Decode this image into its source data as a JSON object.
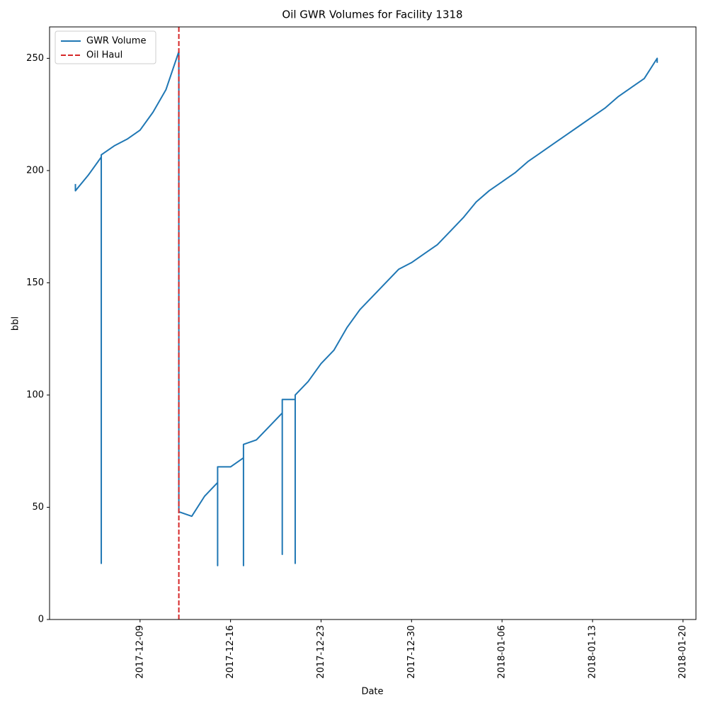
{
  "chart_data": {
    "type": "line",
    "title": "Oil GWR Volumes for Facility 1318",
    "x_label": "Date",
    "y_label": "bbl",
    "x": [
      "2017-12-04",
      "2017-12-04",
      "2017-12-05",
      "2017-12-06",
      "2017-12-06",
      "2017-12-06",
      "2017-12-07",
      "2017-12-08",
      "2017-12-09",
      "2017-12-10",
      "2017-12-11",
      "2017-12-12",
      "2017-12-12",
      "2017-12-13",
      "2017-12-14",
      "2017-12-15",
      "2017-12-15",
      "2017-12-15",
      "2017-12-16",
      "2017-12-17",
      "2017-12-17",
      "2017-12-17",
      "2017-12-18",
      "2017-12-19",
      "2017-12-20",
      "2017-12-20",
      "2017-12-20",
      "2017-12-21",
      "2017-12-21",
      "2017-12-21",
      "2017-12-22",
      "2017-12-23",
      "2017-12-24",
      "2017-12-25",
      "2017-12-26",
      "2017-12-27",
      "2017-12-28",
      "2017-12-29",
      "2017-12-30",
      "2017-12-31",
      "2018-01-01",
      "2018-01-02",
      "2018-01-03",
      "2018-01-04",
      "2018-01-05",
      "2018-01-06",
      "2018-01-07",
      "2018-01-08",
      "2018-01-09",
      "2018-01-10",
      "2018-01-11",
      "2018-01-12",
      "2018-01-13",
      "2018-01-14",
      "2018-01-15",
      "2018-01-16",
      "2018-01-17",
      "2018-01-18",
      "2018-01-18"
    ],
    "series": [
      {
        "name": "GWR Volume",
        "color": "#1f77b4",
        "values": [
          194,
          191,
          198,
          206,
          25,
          207,
          211,
          214,
          218,
          226,
          236,
          253,
          48,
          46,
          55,
          61,
          24,
          68,
          68,
          72,
          24,
          78,
          80,
          86,
          92,
          29,
          98,
          98,
          25,
          100,
          106,
          114,
          120,
          130,
          138,
          144,
          150,
          156,
          159,
          163,
          167,
          173,
          179,
          186,
          191,
          195,
          199,
          204,
          208,
          212,
          216,
          220,
          224,
          228,
          233,
          237,
          241,
          250,
          248
        ]
      }
    ],
    "vlines": [
      {
        "name": "Oil Haul",
        "color": "#d62728",
        "x": "2017-12-12"
      }
    ],
    "xlim": [
      "2017-12-02",
      "2018-01-21"
    ],
    "xticks": [
      "2017-12-09",
      "2017-12-16",
      "2017-12-23",
      "2017-12-30",
      "2018-01-06",
      "2018-01-13",
      "2018-01-20"
    ],
    "ylim": [
      0,
      264
    ],
    "yticks": [
      0,
      50,
      100,
      150,
      200,
      250
    ],
    "grid": false,
    "legend": "upper-left"
  }
}
